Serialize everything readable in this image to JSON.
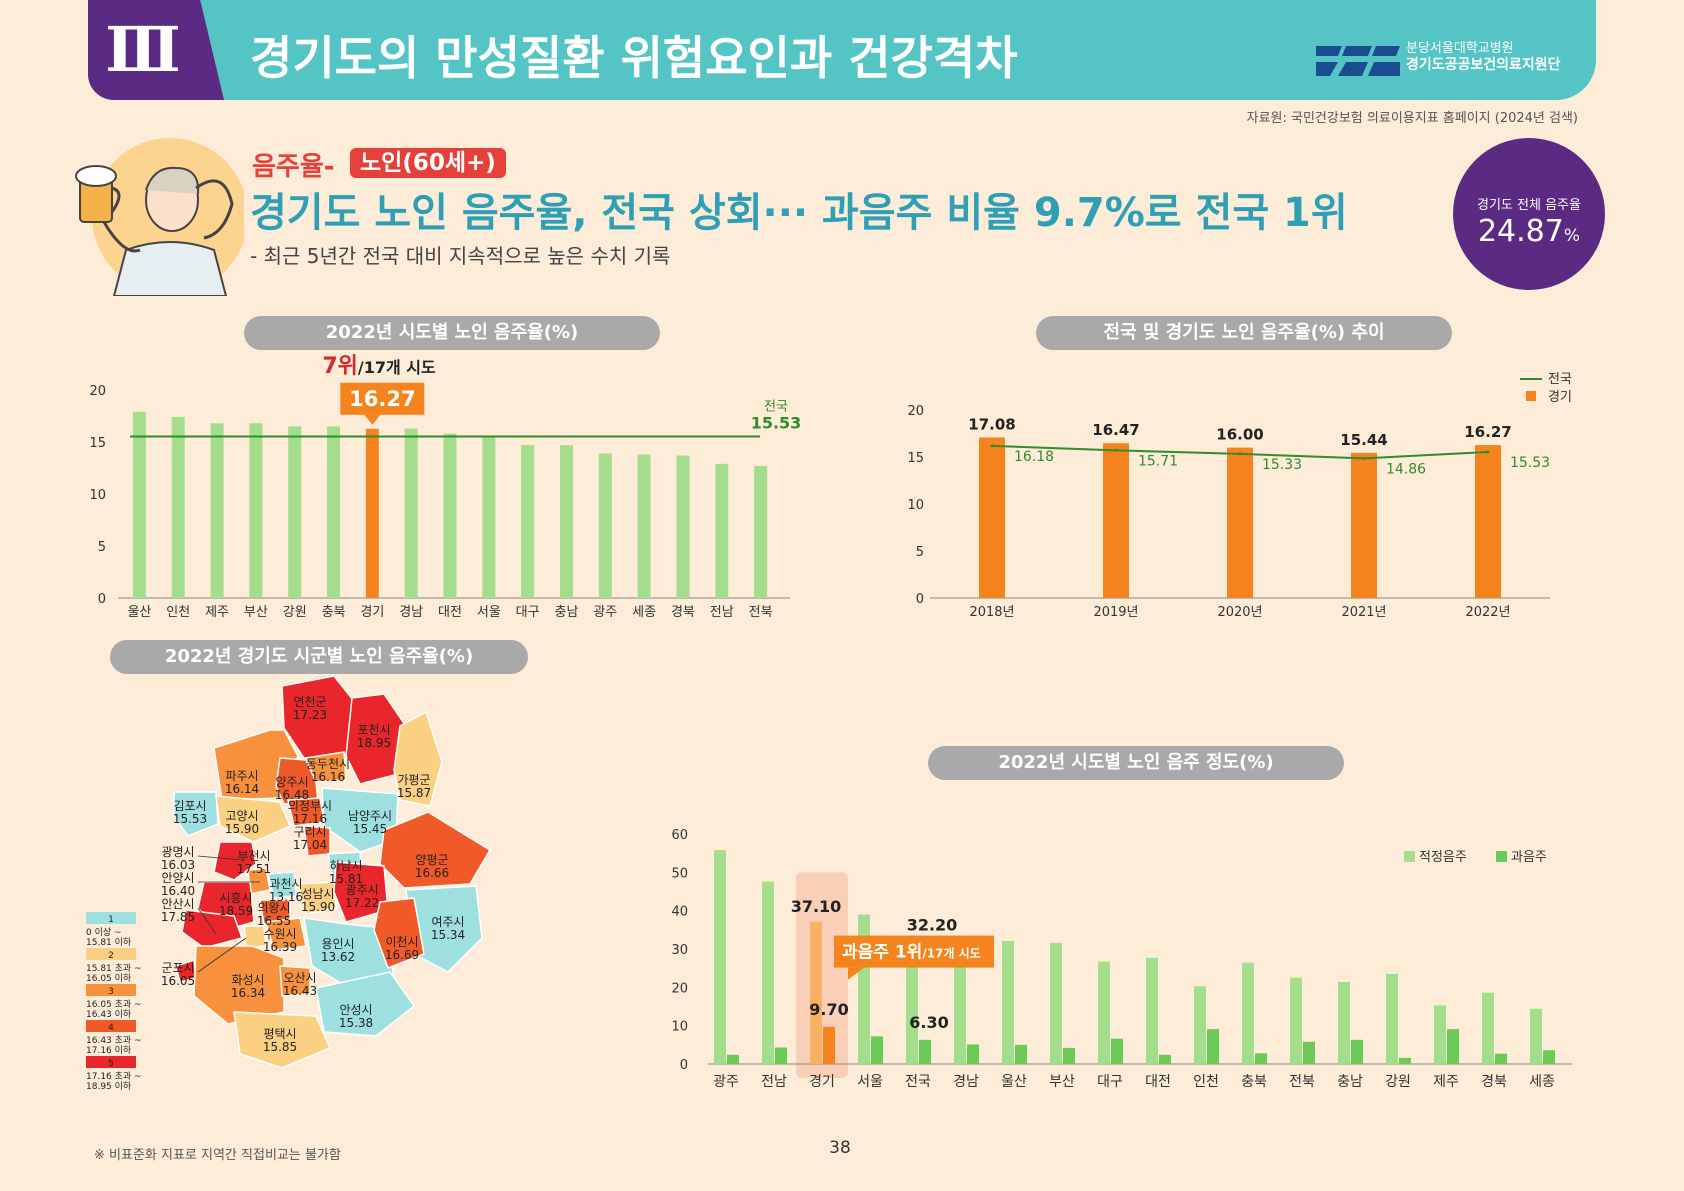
{
  "header": {
    "roman": "Ⅲ",
    "title": "경기도의 만성질환 위험요인과 건강격차",
    "logo_line1": "분당서울대학교병원",
    "logo_line2": "경기도공공보건의료지원단"
  },
  "source": "자료원: 국민건강보험 의료이용지표 홈페이지 (2024년 검색)",
  "topic": {
    "label": "음주율-",
    "badge": "노인(60세+)",
    "headline": "경기도 노인 음주율, 전국 상회··· 과음주 비율 9.7%로 전국 1위",
    "subline": "- 최근 5년간 전국 대비 지속적으로 높은 수치 기록"
  },
  "summary": {
    "label": "경기도 전체 음주율",
    "value": "24.87",
    "unit": "%"
  },
  "colors": {
    "green_light": "#a4dd8c",
    "green_dark": "#6ccb57",
    "orange": "#f5841f",
    "national_line": "#2f8c2f",
    "rank_red": "#d9262e"
  },
  "chart_data": [
    {
      "type": "bar",
      "title": "2022년 시도별 노인 음주율(%)",
      "categories": [
        "울산",
        "인천",
        "제주",
        "부산",
        "강원",
        "충북",
        "경기",
        "경남",
        "대전",
        "서울",
        "대구",
        "충남",
        "광주",
        "세종",
        "경북",
        "전남",
        "전북"
      ],
      "values": [
        17.9,
        17.4,
        16.8,
        16.8,
        16.5,
        16.5,
        16.27,
        16.3,
        15.8,
        15.6,
        14.7,
        14.7,
        13.9,
        13.8,
        13.7,
        12.9,
        12.7
      ],
      "highlight": "경기",
      "highlight_value": "16.27",
      "rank": "7위",
      "rank_suffix": "/17개 시도",
      "reference_line": {
        "name": "전국",
        "value": 15.53,
        "label": "15.53"
      },
      "ylim": [
        0,
        20
      ],
      "yticks": [
        0,
        5,
        10,
        15,
        20
      ]
    },
    {
      "type": "bar",
      "title": "전국 및 경기도 노인 음주율(%) 추이",
      "categories": [
        "2018년",
        "2019년",
        "2020년",
        "2021년",
        "2022년"
      ],
      "series": [
        {
          "name": "경기",
          "values": [
            17.08,
            16.47,
            16.0,
            15.44,
            16.27
          ],
          "labels": [
            "17.08",
            "16.47",
            "16.00",
            "15.44",
            "16.27"
          ]
        },
        {
          "name": "전국",
          "values": [
            16.18,
            15.71,
            15.33,
            14.86,
            15.53
          ],
          "labels": [
            "16.18",
            "15.71",
            "15.33",
            "14.86",
            "15.53"
          ]
        }
      ],
      "legend_position": "top-right",
      "ylim": [
        0,
        20
      ],
      "yticks": [
        0,
        5,
        10,
        15,
        20
      ]
    },
    {
      "type": "bar",
      "title": "2022년 시도별 노인 음주 정도(%)",
      "categories": [
        "광주",
        "전남",
        "경기",
        "서울",
        "전국",
        "경남",
        "울산",
        "부산",
        "대구",
        "대전",
        "인천",
        "충북",
        "전북",
        "충남",
        "강원",
        "제주",
        "경북",
        "세종"
      ],
      "series": [
        {
          "name": "적정음주",
          "values": [
            55.8,
            47.6,
            37.1,
            39.0,
            32.2,
            31.9,
            32.1,
            31.6,
            26.7,
            27.7,
            20.3,
            26.4,
            22.5,
            21.4,
            23.5,
            15.3,
            18.6,
            14.4
          ]
        },
        {
          "name": "과음주",
          "values": [
            2.4,
            4.3,
            9.7,
            7.2,
            6.3,
            5.1,
            5.0,
            4.2,
            6.6,
            2.4,
            9.1,
            2.8,
            5.8,
            6.3,
            1.6,
            9.1,
            2.7,
            3.6
          ]
        }
      ],
      "labels": {
        "경기": [
          "37.10",
          "9.70"
        ],
        "전국": [
          "32.20",
          "6.30"
        ]
      },
      "callout": "과음주 1위",
      "callout_suffix": "/17개 시도",
      "legend_position": "top-right",
      "ylim": [
        0,
        60
      ],
      "yticks": [
        0,
        10,
        20,
        30,
        40,
        50,
        60
      ]
    }
  ],
  "map": {
    "title": "2022년 경기도 시군별 노인 음주율(%)",
    "legend": [
      {
        "n": "1",
        "range": "0 이상 ~ 15.81 이하",
        "color": "#9ee0e0"
      },
      {
        "n": "2",
        "range": "15.81 초과 ~ 16.05 이하",
        "color": "#fbd083"
      },
      {
        "n": "3",
        "range": "16.05 초과 ~ 16.43 이하",
        "color": "#f7913d"
      },
      {
        "n": "4",
        "range": "16.43 초과 ~ 17.16 이하",
        "color": "#f05a28"
      },
      {
        "n": "5",
        "range": "17.16 초과 ~ 18.95 이하",
        "color": "#e8262b"
      }
    ],
    "regions": [
      {
        "name": "연천군",
        "value": "17.23",
        "c": 5
      },
      {
        "name": "포천시",
        "value": "18.95",
        "c": 5
      },
      {
        "name": "동두천시",
        "value": "16.16",
        "c": 3
      },
      {
        "name": "파주시",
        "value": "16.14",
        "c": 3
      },
      {
        "name": "양주시",
        "value": "16.48",
        "c": 4
      },
      {
        "name": "가평군",
        "value": "15.87",
        "c": 2
      },
      {
        "name": "의정부시",
        "value": "17.16",
        "c": 4
      },
      {
        "name": "김포시",
        "value": "15.53",
        "c": 1
      },
      {
        "name": "고양시",
        "value": "15.90",
        "c": 2
      },
      {
        "name": "남양주시",
        "value": "15.45",
        "c": 1
      },
      {
        "name": "구리시",
        "value": "17.04",
        "c": 4
      },
      {
        "name": "광명시",
        "value": "16.03",
        "c": 2
      },
      {
        "name": "부천시",
        "value": "17.51",
        "c": 5
      },
      {
        "name": "하남시",
        "value": "15.81",
        "c": 1
      },
      {
        "name": "양평군",
        "value": "16.66",
        "c": 4
      },
      {
        "name": "안양시",
        "value": "16.40",
        "c": 3
      },
      {
        "name": "과천시",
        "value": "13.16",
        "c": 1
      },
      {
        "name": "시흥시",
        "value": "18.59",
        "c": 5
      },
      {
        "name": "성남시",
        "value": "15.90",
        "c": 2
      },
      {
        "name": "광주시",
        "value": "17.22",
        "c": 5
      },
      {
        "name": "안산시",
        "value": "17.85",
        "c": 5
      },
      {
        "name": "의왕시",
        "value": "16.55",
        "c": 4
      },
      {
        "name": "수원시",
        "value": "16.39",
        "c": 3
      },
      {
        "name": "여주시",
        "value": "15.34",
        "c": 1
      },
      {
        "name": "용인시",
        "value": "13.62",
        "c": 1
      },
      {
        "name": "이천시",
        "value": "16.69",
        "c": 4
      },
      {
        "name": "군포시",
        "value": "16.05",
        "c": 2
      },
      {
        "name": "화성시",
        "value": "16.34",
        "c": 3
      },
      {
        "name": "오산시",
        "value": "16.43",
        "c": 3
      },
      {
        "name": "안성시",
        "value": "15.38",
        "c": 1
      },
      {
        "name": "평택시",
        "value": "15.85",
        "c": 2
      }
    ]
  },
  "footnote": "※ 비표준화 지표로 지역간 직접비교는 불가함",
  "page_number": "38"
}
